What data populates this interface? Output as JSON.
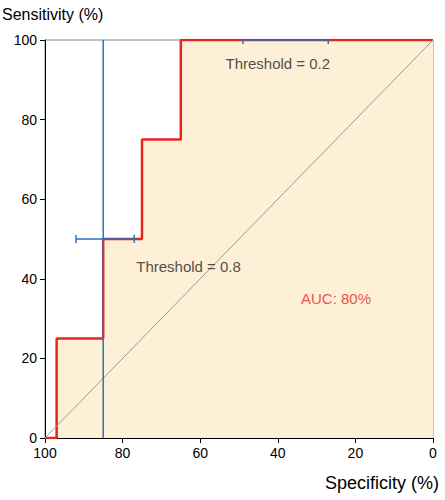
{
  "chart_data": {
    "type": "line",
    "x_label": "Specificity (%)",
    "y_label": "Sensitivity (%)",
    "xlim": [
      100,
      0
    ],
    "xticks": [
      100,
      80,
      60,
      40,
      20,
      0
    ],
    "ylim": [
      0,
      100
    ],
    "yticks": [
      0,
      20,
      40,
      60,
      80,
      100
    ],
    "grid": false,
    "series": [
      {
        "type": "area",
        "color": "#e8251f",
        "x": [
          100,
          97,
          97,
          85,
          85,
          75,
          75,
          65,
          65,
          0
        ],
        "values": [
          0,
          0,
          25,
          25,
          50,
          50,
          75,
          75,
          100,
          100
        ]
      },
      {
        "type": "line",
        "color": "#9a9a9a",
        "x": [
          100,
          0
        ],
        "values": [
          0,
          100
        ]
      },
      {
        "type": "line",
        "color": "#2b72b8",
        "x": [
          85,
          85
        ],
        "values": [
          0,
          100
        ]
      }
    ],
    "error_bars": [
      {
        "y": 50,
        "x_low": 77,
        "x_high": 92,
        "color": "#2b72b8"
      },
      {
        "y": 100,
        "x_low": 27,
        "x_high": 49,
        "color": "#2b72b8"
      }
    ],
    "annotations": [
      {
        "text": "Threshold = 0.2",
        "x": 40,
        "y": 94,
        "color": "#222222"
      },
      {
        "text": "Threshold = 0.8",
        "x": 63,
        "y": 43,
        "color": "#222222"
      },
      {
        "text": "AUC: 80%",
        "x": 25,
        "y": 35,
        "color": "#e8251f"
      }
    ]
  }
}
